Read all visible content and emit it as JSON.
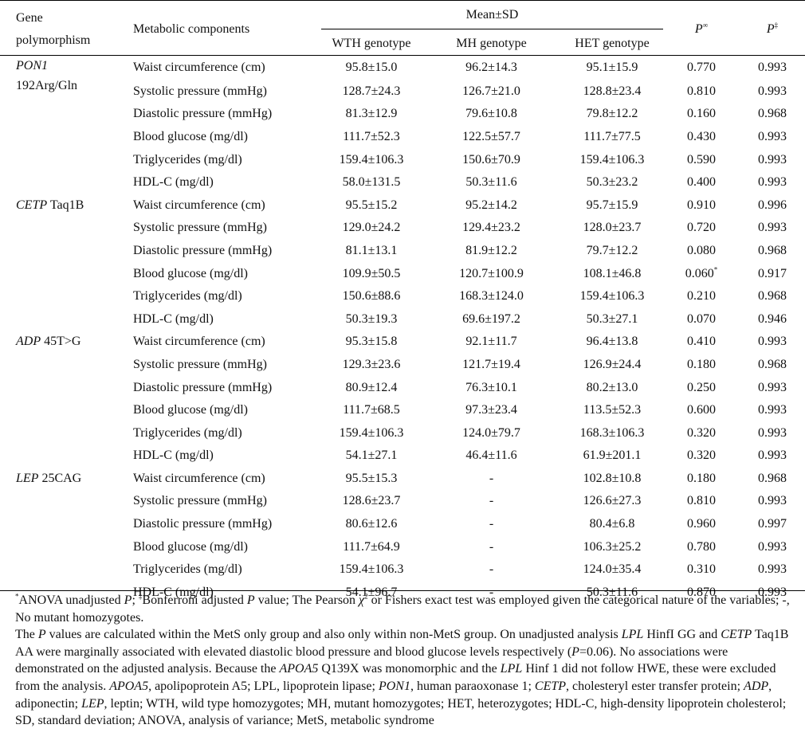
{
  "header": {
    "gene_col_line1": "Gene",
    "gene_col_line2": "polymorphism",
    "components_col": "Metabolic components",
    "mean_sd": "Mean±SD",
    "wth": "WTH genotype",
    "mh": "MH genotype",
    "het": "HET genotype",
    "p_unadj": "P",
    "p_unadj_sup": "∞",
    "p_adj": "P",
    "p_adj_sup": "‡"
  },
  "rows": [
    {
      "gene_italic": "PON1",
      "gene_rest": "",
      "gene_line2": "192Arg/Gln",
      "component": "Waist circumference (cm)",
      "wth": "95.8±15.0",
      "mh": "96.2±14.3",
      "het": "95.1±15.9",
      "p": "0.770",
      "p_sup": "",
      "padj": "0.993"
    },
    {
      "gene_italic": "",
      "gene_rest": "",
      "gene_line2": "",
      "component": "Systolic pressure (mmHg)",
      "wth": "128.7±24.3",
      "mh": "126.7±21.0",
      "het": "128.8±23.4",
      "p": "0.810",
      "p_sup": "",
      "padj": "0.993"
    },
    {
      "gene_italic": "",
      "gene_rest": "",
      "gene_line2": "",
      "component": "Diastolic pressure (mmHg)",
      "wth": "81.3±12.9",
      "mh": "79.6±10.8",
      "het": "79.8±12.2",
      "p": "0.160",
      "p_sup": "",
      "padj": "0.968"
    },
    {
      "gene_italic": "",
      "gene_rest": "",
      "gene_line2": "",
      "component": "Blood glucose (mg/dl)",
      "wth": "111.7±52.3",
      "mh": "122.5±57.7",
      "het": "111.7±77.5",
      "p": "0.430",
      "p_sup": "",
      "padj": "0.993"
    },
    {
      "gene_italic": "",
      "gene_rest": "",
      "gene_line2": "",
      "component": "Triglycerides (mg/dl)",
      "wth": "159.4±106.3",
      "mh": "150.6±70.9",
      "het": "159.4±106.3",
      "p": "0.590",
      "p_sup": "",
      "padj": "0.993"
    },
    {
      "gene_italic": "",
      "gene_rest": "",
      "gene_line2": "",
      "component": "HDL-C (mg/dl)",
      "wth": "58.0±131.5",
      "mh": "50.3±11.6",
      "het": "50.3±23.2",
      "p": "0.400",
      "p_sup": "",
      "padj": "0.993"
    },
    {
      "gene_italic": "CETP",
      "gene_rest": " Taq1B",
      "gene_line2": "",
      "component": "Waist circumference (cm)",
      "wth": "95.5±15.2",
      "mh": "95.2±14.2",
      "het": "95.7±15.9",
      "p": "0.910",
      "p_sup": "",
      "padj": "0.996"
    },
    {
      "gene_italic": "",
      "gene_rest": "",
      "gene_line2": "",
      "component": "Systolic pressure (mmHg)",
      "wth": "129.0±24.2",
      "mh": "129.4±23.2",
      "het": "128.0±23.7",
      "p": "0.720",
      "p_sup": "",
      "padj": "0.993"
    },
    {
      "gene_italic": "",
      "gene_rest": "",
      "gene_line2": "",
      "component": "Diastolic pressure (mmHg)",
      "wth": "81.1±13.1",
      "mh": "81.9±12.2",
      "het": "79.7±12.2",
      "p": "0.080",
      "p_sup": "",
      "padj": "0.968"
    },
    {
      "gene_italic": "",
      "gene_rest": "",
      "gene_line2": "",
      "component": "Blood glucose (mg/dl)",
      "wth": "109.9±50.5",
      "mh": "120.7±100.9",
      "het": "108.1±46.8",
      "p": "0.060",
      "p_sup": "*",
      "padj": "0.917"
    },
    {
      "gene_italic": "",
      "gene_rest": "",
      "gene_line2": "",
      "component": "Triglycerides (mg/dl)",
      "wth": "150.6±88.6",
      "mh": "168.3±124.0",
      "het": "159.4±106.3",
      "p": "0.210",
      "p_sup": "",
      "padj": "0.968"
    },
    {
      "gene_italic": "",
      "gene_rest": "",
      "gene_line2": "",
      "component": "HDL-C (mg/dl)",
      "wth": "50.3±19.3",
      "mh": "69.6±197.2",
      "het": "50.3±27.1",
      "p": "0.070",
      "p_sup": "",
      "padj": "0.946"
    },
    {
      "gene_italic": "ADP",
      "gene_rest": " 45T>G",
      "gene_line2": "",
      "component": "Waist circumference (cm)",
      "wth": "95.3±15.8",
      "mh": "92.1±11.7",
      "het": "96.4±13.8",
      "p": "0.410",
      "p_sup": "",
      "padj": "0.993"
    },
    {
      "gene_italic": "",
      "gene_rest": "",
      "gene_line2": "",
      "component": "Systolic pressure (mmHg)",
      "wth": "129.3±23.6",
      "mh": "121.7±19.4",
      "het": "126.9±24.4",
      "p": "0.180",
      "p_sup": "",
      "padj": "0.968"
    },
    {
      "gene_italic": "",
      "gene_rest": "",
      "gene_line2": "",
      "component": "Diastolic pressure (mmHg)",
      "wth": "80.9±12.4",
      "mh": "76.3±10.1",
      "het": "80.2±13.0",
      "p": "0.250",
      "p_sup": "",
      "padj": "0.993"
    },
    {
      "gene_italic": "",
      "gene_rest": "",
      "gene_line2": "",
      "component": "Blood glucose (mg/dl)",
      "wth": "111.7±68.5",
      "mh": "97.3±23.4",
      "het": "113.5±52.3",
      "p": "0.600",
      "p_sup": "",
      "padj": "0.993"
    },
    {
      "gene_italic": "",
      "gene_rest": "",
      "gene_line2": "",
      "component": "Triglycerides (mg/dl)",
      "wth": "159.4±106.3",
      "mh": "124.0±79.7",
      "het": "168.3±106.3",
      "p": "0.320",
      "p_sup": "",
      "padj": "0.993"
    },
    {
      "gene_italic": "",
      "gene_rest": "",
      "gene_line2": "",
      "component": "HDL-C (mg/dl)",
      "wth": "54.1±27.1",
      "mh": "46.4±11.6",
      "het": "61.9±201.1",
      "p": "0.320",
      "p_sup": "",
      "padj": "0.993"
    },
    {
      "gene_italic": "LEP",
      "gene_rest": " 25CAG",
      "gene_line2": "",
      "component": "Waist circumference (cm)",
      "wth": "95.5±15.3",
      "mh": "-",
      "het": "102.8±10.8",
      "p": "0.180",
      "p_sup": "",
      "padj": "0.968"
    },
    {
      "gene_italic": "",
      "gene_rest": "",
      "gene_line2": "",
      "component": "Systolic pressure (mmHg)",
      "wth": "128.6±23.7",
      "mh": "-",
      "het": "126.6±27.3",
      "p": "0.810",
      "p_sup": "",
      "padj": "0.993"
    },
    {
      "gene_italic": "",
      "gene_rest": "",
      "gene_line2": "",
      "component": "Diastolic pressure (mmHg)",
      "wth": "80.6±12.6",
      "mh": "-",
      "het": "80.4±6.8",
      "p": "0.960",
      "p_sup": "",
      "padj": "0.997"
    },
    {
      "gene_italic": "",
      "gene_rest": "",
      "gene_line2": "",
      "component": "Blood glucose (mg/dl)",
      "wth": "111.7±64.9",
      "mh": "-",
      "het": "106.3±25.2",
      "p": "0.780",
      "p_sup": "",
      "padj": "0.993"
    },
    {
      "gene_italic": "",
      "gene_rest": "",
      "gene_line2": "",
      "component": "Triglycerides (mg/dl)",
      "wth": "159.4±106.3",
      "mh": "-",
      "het": "124.0±35.4",
      "p": "0.310",
      "p_sup": "",
      "padj": "0.993"
    },
    {
      "gene_italic": "",
      "gene_rest": "",
      "gene_line2": "",
      "component": "HDL-C (mg/dl)",
      "wth": "54.1±96.7",
      "mh": "-",
      "het": "50.3±11.6",
      "p": "0.870",
      "p_sup": "",
      "padj": "0.993"
    }
  ],
  "footnote1": {
    "star": "*",
    "a": "ANOVA unadjusted ",
    "a_p": "P",
    "b": "; ",
    "dagger": "‡",
    "c": "Bonferroni adjusted ",
    "c_p": "P",
    "d": " value; The Pearson ",
    "chi": "χ",
    "chi_sup": "2",
    "e": " or Fishers exact test was employed given the categorical nature of the variables; -, No mutant homozygotes."
  },
  "footnote2": {
    "s1": "The ",
    "p1": "P",
    "s2": " values are calculated within the MetS only group and also only within non-MetS group. On unadjusted analysis ",
    "lpl": "LPL",
    "s3": " HinfI GG and ",
    "cetp": "CETP",
    "s4": " Taq1B AA were marginally associated with elevated diastolic blood pressure and blood glucose levels respectively (",
    "p2": "P",
    "s5": "=0.06). No associations were demonstrated on the adjusted analysis. Because the ",
    "apoa5": "APOA5",
    "s6": " Q139X was monomorphic and the ",
    "lpl2": "LPL",
    "s7": " Hinf 1 did not follow HWE, these were excluded from the analysis. ",
    "apoa5b": "APOA5",
    "s8": ", apolipoprotein A5; LPL, lipoprotein lipase; ",
    "pon1": "PON1",
    "s9": ", human paraoxonase 1; ",
    "cetp2": "CETP",
    "s10": ", cholesteryl ester transfer protein; ",
    "adp": "ADP",
    "s11": ", adiponectin; ",
    "lep": "LEP",
    "s12": ", leptin; WTH, wild type homozygotes; MH, mutant homozygotes; HET, heterozygotes; HDL-C, high-density lipoprotein cholesterol; SD, standard deviation; ANOVA, analysis of variance; MetS, metabolic syndrome"
  }
}
